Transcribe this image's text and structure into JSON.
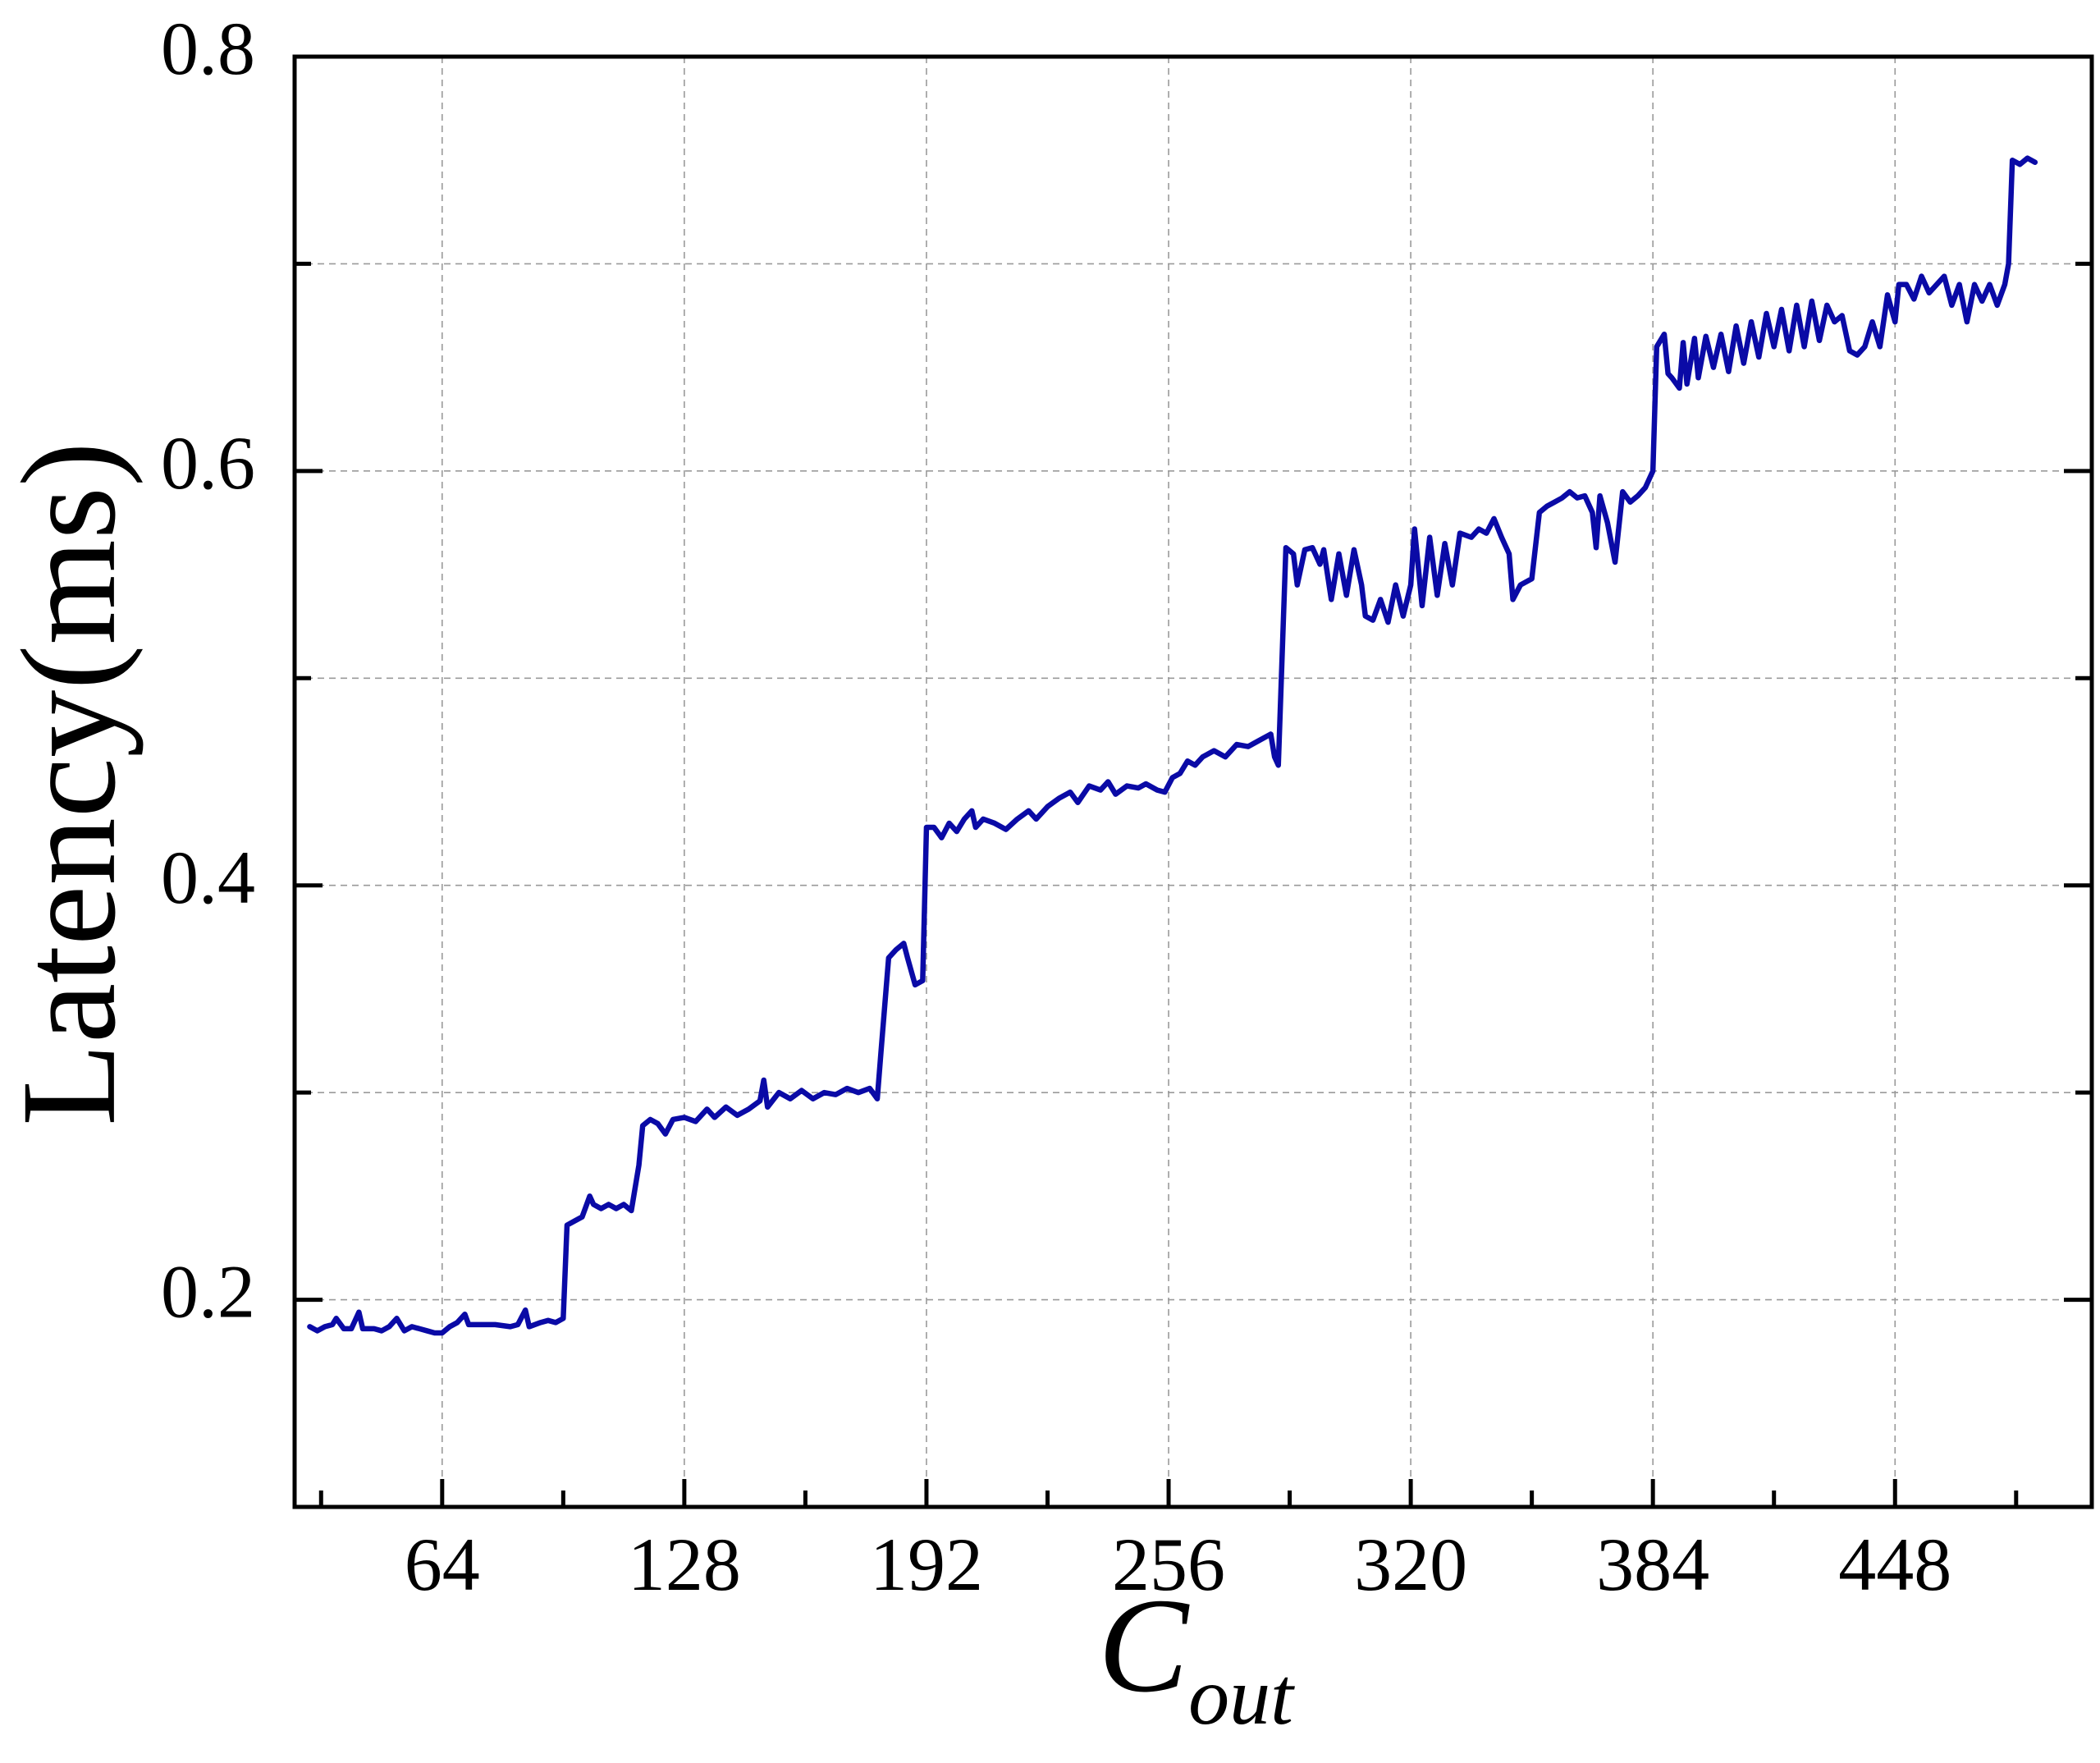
{
  "chart_data": {
    "type": "line",
    "y_label": "Latency(ms)",
    "x_label": "C",
    "x_label_sub": "out",
    "color": "#0a0aa6",
    "grid": true,
    "xlim": [
      25,
      500
    ],
    "ylim": [
      0.1,
      0.8
    ],
    "xticks": [
      64,
      128,
      192,
      256,
      320,
      384,
      448
    ],
    "x_minor_ticks": [
      32,
      96,
      160,
      224,
      288,
      352,
      416,
      480
    ],
    "yticks": [
      0.2,
      0.4,
      0.6,
      0.8
    ],
    "y_minor_ticks": [
      0.3,
      0.5,
      0.7
    ],
    "x": [
      29,
      31,
      33,
      35,
      36,
      38,
      40,
      42,
      43,
      46,
      48,
      50,
      52,
      54,
      56,
      58,
      60,
      62,
      64,
      66,
      68,
      70,
      71,
      74,
      78,
      82,
      84,
      86,
      87,
      90,
      92,
      94,
      96,
      97,
      99,
      101,
      103,
      104,
      106,
      108,
      110,
      112,
      114,
      116,
      117,
      119,
      121,
      123,
      125,
      128,
      131,
      134,
      136,
      139,
      142,
      145,
      148,
      149,
      150,
      153,
      156,
      159,
      162,
      165,
      168,
      171,
      174,
      177,
      179,
      180,
      182,
      184,
      186,
      187,
      189,
      191,
      192,
      194,
      196,
      198,
      200,
      202,
      204,
      205,
      207,
      210,
      213,
      216,
      219,
      221,
      224,
      227,
      230,
      232,
      235,
      238,
      240,
      242,
      245,
      248,
      250,
      253,
      255,
      257,
      259,
      261,
      263,
      265,
      268,
      271,
      274,
      277,
      280,
      283,
      284,
      285,
      287,
      289,
      290,
      292,
      294,
      296,
      297,
      299,
      301,
      303,
      305,
      307,
      308,
      310,
      312,
      314,
      316,
      318,
      320,
      321,
      323,
      325,
      327,
      329,
      331,
      333,
      336,
      338,
      340,
      342,
      344,
      346,
      347,
      349,
      352,
      354,
      356,
      358,
      360,
      362,
      364,
      366,
      368,
      369,
      370,
      372,
      374,
      376,
      378,
      380,
      382,
      384,
      385,
      387,
      388,
      389,
      391,
      392,
      393,
      395,
      396,
      398,
      400,
      402,
      404,
      406,
      408,
      410,
      412,
      414,
      416,
      418,
      420,
      422,
      424,
      426,
      428,
      430,
      432,
      434,
      436,
      438,
      440,
      442,
      444,
      446,
      448,
      449,
      451,
      453,
      455,
      457,
      459,
      461,
      463,
      465,
      467,
      469,
      471,
      473,
      475,
      477,
      478,
      479,
      481,
      483,
      485
    ],
    "values": [
      0.187,
      0.185,
      0.187,
      0.188,
      0.191,
      0.186,
      0.186,
      0.194,
      0.186,
      0.186,
      0.185,
      0.187,
      0.191,
      0.185,
      0.187,
      0.186,
      0.185,
      0.184,
      0.184,
      0.187,
      0.189,
      0.193,
      0.188,
      0.188,
      0.188,
      0.187,
      0.188,
      0.195,
      0.187,
      0.189,
      0.19,
      0.189,
      0.191,
      0.236,
      0.238,
      0.24,
      0.25,
      0.246,
      0.244,
      0.246,
      0.244,
      0.246,
      0.243,
      0.265,
      0.284,
      0.287,
      0.285,
      0.28,
      0.287,
      0.288,
      0.286,
      0.292,
      0.288,
      0.293,
      0.289,
      0.292,
      0.296,
      0.306,
      0.293,
      0.3,
      0.297,
      0.301,
      0.297,
      0.3,
      0.299,
      0.302,
      0.3,
      0.302,
      0.297,
      0.32,
      0.365,
      0.369,
      0.372,
      0.365,
      0.352,
      0.354,
      0.428,
      0.428,
      0.423,
      0.43,
      0.426,
      0.432,
      0.436,
      0.428,
      0.432,
      0.43,
      0.427,
      0.432,
      0.436,
      0.432,
      0.438,
      0.442,
      0.445,
      0.44,
      0.448,
      0.446,
      0.45,
      0.444,
      0.448,
      0.447,
      0.449,
      0.446,
      0.445,
      0.452,
      0.454,
      0.46,
      0.458,
      0.462,
      0.465,
      0.462,
      0.468,
      0.467,
      0.47,
      0.473,
      0.462,
      0.458,
      0.563,
      0.56,
      0.545,
      0.562,
      0.563,
      0.555,
      0.562,
      0.538,
      0.56,
      0.54,
      0.562,
      0.545,
      0.53,
      0.528,
      0.538,
      0.527,
      0.545,
      0.53,
      0.545,
      0.572,
      0.535,
      0.568,
      0.54,
      0.565,
      0.545,
      0.57,
      0.568,
      0.572,
      0.57,
      0.577,
      0.568,
      0.56,
      0.538,
      0.545,
      0.548,
      0.58,
      0.583,
      0.585,
      0.587,
      0.59,
      0.587,
      0.588,
      0.58,
      0.563,
      0.588,
      0.575,
      0.556,
      0.59,
      0.585,
      0.588,
      0.592,
      0.6,
      0.66,
      0.666,
      0.647,
      0.645,
      0.64,
      0.662,
      0.642,
      0.664,
      0.645,
      0.665,
      0.65,
      0.666,
      0.648,
      0.67,
      0.652,
      0.672,
      0.655,
      0.676,
      0.66,
      0.678,
      0.658,
      0.68,
      0.66,
      0.682,
      0.663,
      0.68,
      0.672,
      0.675,
      0.658,
      0.656,
      0.66,
      0.672,
      0.66,
      0.685,
      0.672,
      0.69,
      0.69,
      0.683,
      0.694,
      0.686,
      0.69,
      0.694,
      0.68,
      0.69,
      0.672,
      0.69,
      0.682,
      0.69,
      0.68,
      0.69,
      0.7,
      0.75,
      0.748,
      0.751,
      0.749
    ]
  }
}
